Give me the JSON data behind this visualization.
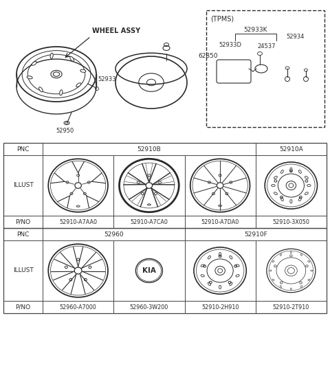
{
  "bg_color": "#ffffff",
  "line_color": "#2a2a2a",
  "table_border_color": "#444444",
  "top_labels": {
    "wheel_assy": "WHEEL ASSY",
    "part_62850": "62850",
    "part_52933": "52933",
    "part_52950": "52950",
    "tpms_label": "(TPMS)",
    "part_52933K": "52933K",
    "part_52933D": "52933D",
    "part_52934": "52934",
    "part_24537": "24537"
  },
  "table_row1_pnc": [
    "52910B",
    "52910A"
  ],
  "table_row1_pno": [
    "52910-A7AA0",
    "52910-A7CA0",
    "52910-A7DA0",
    "52910-3X050"
  ],
  "table_row2_pnc": [
    "52960",
    "52910F"
  ],
  "table_row2_pno": [
    "52960-A7000",
    "52960-3W200",
    "52910-2H910",
    "52910-2T910"
  ],
  "row_labels": [
    "PNC",
    "ILLUST",
    "P/NO"
  ]
}
